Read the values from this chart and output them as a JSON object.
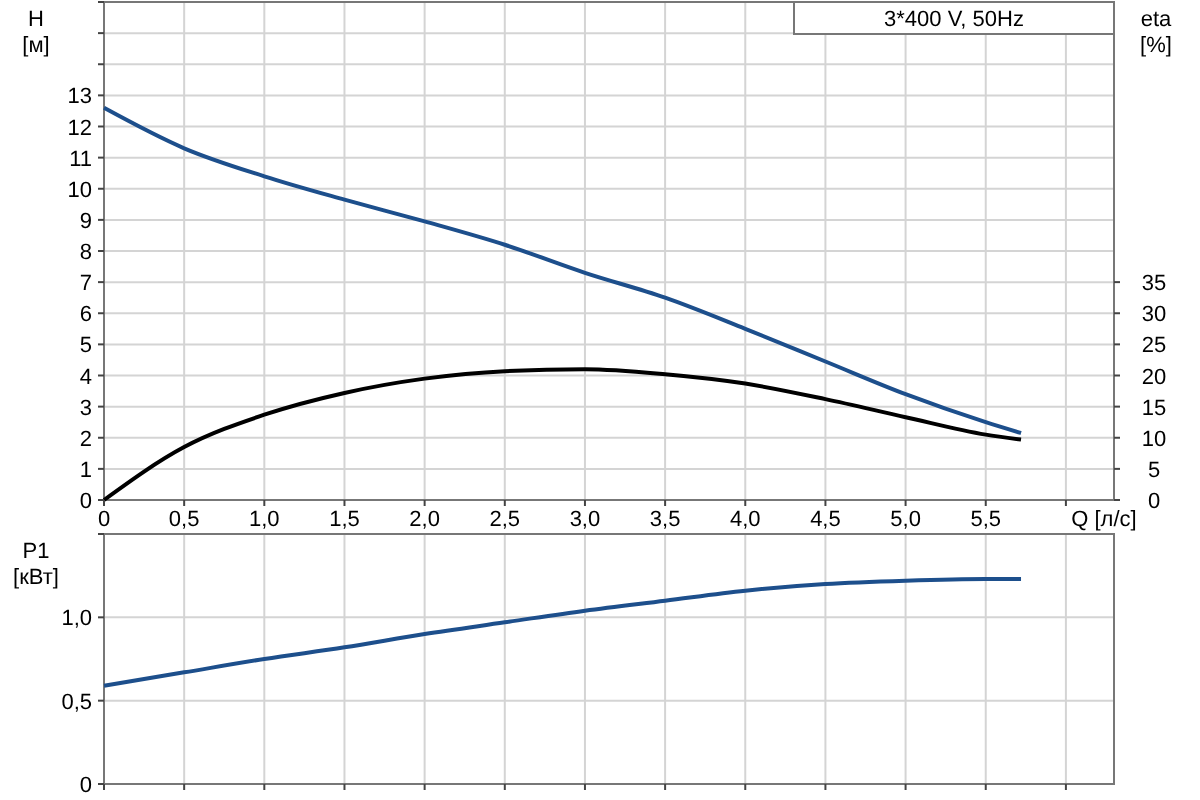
{
  "chart_data": [
    {
      "type": "line",
      "title": "3*400 V, 50Hz",
      "xlabel": "Q [л/с]",
      "ylabel": "H [м]",
      "y2label": "eta [%]",
      "grid": true,
      "xlim": [
        0,
        6.3
      ],
      "xticks": [
        0,
        {
          "value": 0.5,
          "label": "0,5"
        },
        {
          "value": 1,
          "label": "1,0"
        },
        {
          "value": 1.5,
          "label": "1,5"
        },
        {
          "value": 2,
          "label": "2,0"
        },
        {
          "value": 2.5,
          "label": "2,5"
        },
        {
          "value": 3,
          "label": "3,0"
        },
        {
          "value": 3.5,
          "label": "3,5"
        },
        {
          "value": 4,
          "label": "4,0"
        },
        {
          "value": 4.5,
          "label": "4,5"
        },
        {
          "value": 5,
          "label": "5,0"
        },
        {
          "value": 5.5,
          "label": "5,5"
        },
        {
          "value": 6,
          "label": null
        }
      ],
      "ylim": [
        0,
        16
      ],
      "yticks": [
        0,
        1,
        2,
        3,
        4,
        5,
        6,
        7,
        8,
        9,
        10,
        11,
        12,
        13,
        {
          "value": 14,
          "label": null
        },
        {
          "value": 15,
          "label": null
        },
        {
          "value": 16,
          "label": null
        }
      ],
      "y2lim": [
        0,
        80
      ],
      "y2ticks": [
        0,
        5,
        10,
        15,
        20,
        25,
        30,
        35
      ],
      "x": [
        0,
        0.5,
        1,
        1.5,
        2,
        2.5,
        3,
        3.5,
        4,
        4.5,
        5,
        5.5,
        5.72
      ],
      "series": [
        {
          "color": "#1d4f8c",
          "values": [
            12.6,
            11.3,
            10.4,
            9.65,
            8.95,
            8.2,
            7.3,
            6.5,
            5.5,
            4.45,
            3.4,
            2.5,
            2.15
          ]
        },
        {
          "color": "#000000",
          "axis": "y2",
          "values": [
            0,
            8.5,
            13.7,
            17.2,
            19.5,
            20.7,
            21,
            20.2,
            18.7,
            16.2,
            13.3,
            10.5,
            9.7
          ]
        }
      ]
    },
    {
      "type": "line",
      "ylabel": "P1 [кВт]",
      "grid": true,
      "tick_labels": "y",
      "xlim": [
        0,
        6.3
      ],
      "xticks": [
        {
          "value": 0,
          "label": null
        },
        {
          "value": 0.5,
          "label": null
        },
        {
          "value": 1,
          "label": null
        },
        {
          "value": 1.5,
          "label": null
        },
        {
          "value": 2,
          "label": null
        },
        {
          "value": 2.5,
          "label": null
        },
        {
          "value": 3,
          "label": null
        },
        {
          "value": 3.5,
          "label": null
        },
        {
          "value": 4,
          "label": null
        },
        {
          "value": 4.5,
          "label": null
        },
        {
          "value": 5,
          "label": null
        },
        {
          "value": 5.5,
          "label": null
        },
        {
          "value": 6,
          "label": null
        }
      ],
      "ylim": [
        0,
        1.5
      ],
      "yticks": [
        0,
        {
          "value": 0.5,
          "label": "0,5"
        },
        {
          "value": 1,
          "label": "1,0"
        },
        {
          "value": 1.5,
          "label": null
        }
      ],
      "x": [
        0,
        0.5,
        1,
        1.5,
        2,
        2.5,
        3,
        3.5,
        4,
        4.5,
        5,
        5.5,
        5.72
      ],
      "series": [
        {
          "color": "#1d4f8c",
          "values": [
            0.59,
            0.67,
            0.75,
            0.82,
            0.9,
            0.97,
            1.04,
            1.1,
            1.16,
            1.2,
            1.22,
            1.23,
            1.23
          ]
        }
      ]
    }
  ]
}
